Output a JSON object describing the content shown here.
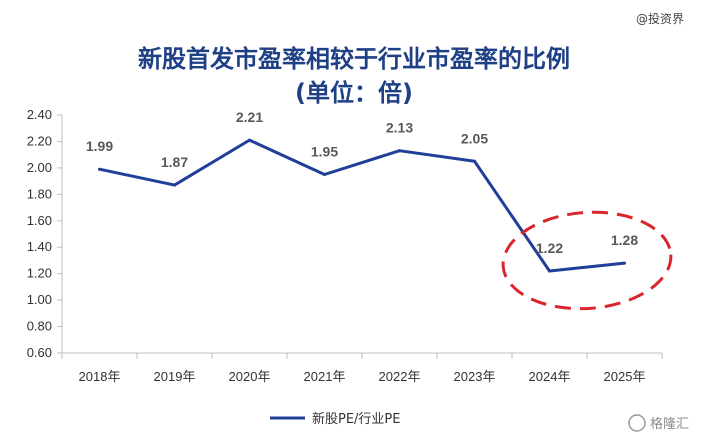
{
  "watermark_top": "@投资界",
  "watermark_bottom": "格隆汇",
  "chart_data": {
    "type": "line",
    "title": "新股首发市盈率相较于行业市盈率的比例",
    "subtitle": "(单位：倍)",
    "categories": [
      "2018年",
      "2019年",
      "2020年",
      "2021年",
      "2022年",
      "2023年",
      "2024年",
      "2025年"
    ],
    "series": [
      {
        "name": "新股PE/行业PE",
        "values": [
          1.99,
          1.87,
          2.21,
          1.95,
          2.13,
          2.05,
          1.22,
          1.28
        ]
      }
    ],
    "data_labels": [
      "1.99",
      "1.87",
      "2.21",
      "1.95",
      "2.13",
      "2.05",
      "1.22",
      "1.28"
    ],
    "ylim": [
      0.6,
      2.4
    ],
    "yticks": [
      "0.60",
      "0.80",
      "1.00",
      "1.20",
      "1.40",
      "1.60",
      "1.80",
      "2.00",
      "2.20",
      "2.40"
    ],
    "ytick_values": [
      0.6,
      0.8,
      1.0,
      1.2,
      1.4,
      1.6,
      1.8,
      2.0,
      2.2,
      2.4
    ],
    "grid": false,
    "legend_position": "bottom",
    "line_color": "#1f3f99",
    "highlight_color": "#d9262c"
  }
}
